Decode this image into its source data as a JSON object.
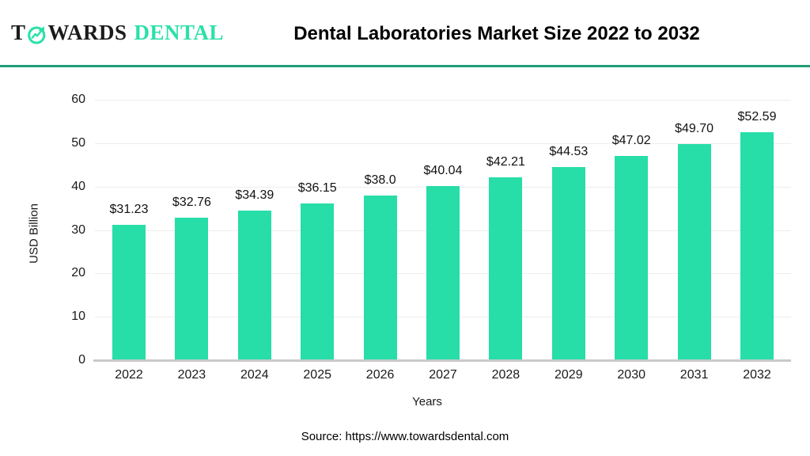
{
  "header": {
    "logo": {
      "prefix": "T",
      "middle": "WARDS",
      "brand": "DENTAL",
      "icon": "trend-arrow-circle-icon",
      "brand_color": "#2be0a9",
      "text_color": "#1b1b1b"
    },
    "title": "Dental Laboratories Market Size 2022 to 2032",
    "divider_color": "#1f9e78"
  },
  "chart_data": {
    "type": "bar",
    "title": "Dental Laboratories Market Size 2022 to 2032",
    "categories": [
      "2022",
      "2023",
      "2024",
      "2025",
      "2026",
      "2027",
      "2028",
      "2029",
      "2030",
      "2031",
      "2032"
    ],
    "values": [
      31.23,
      32.76,
      34.39,
      36.15,
      38.0,
      40.04,
      42.21,
      44.53,
      47.02,
      49.7,
      52.59
    ],
    "value_labels": [
      "$31.23",
      "$32.76",
      "$34.39",
      "$36.15",
      "$38.0",
      "$40.04",
      "$42.21",
      "$44.53",
      "$47.02",
      "$49.70",
      "$52.59"
    ],
    "xlabel": "Years",
    "ylabel": "USD Billion",
    "ylim": [
      0,
      60
    ],
    "yticks": [
      0,
      10,
      20,
      30,
      40,
      50,
      60
    ],
    "grid": "horizontal",
    "legend_position": "none",
    "bar_color": "#27dda8",
    "gridline_color": "#ededed",
    "axis_line_color": "#c9c9c9"
  },
  "footer": {
    "source": "Source: https://www.towardsdental.com"
  }
}
